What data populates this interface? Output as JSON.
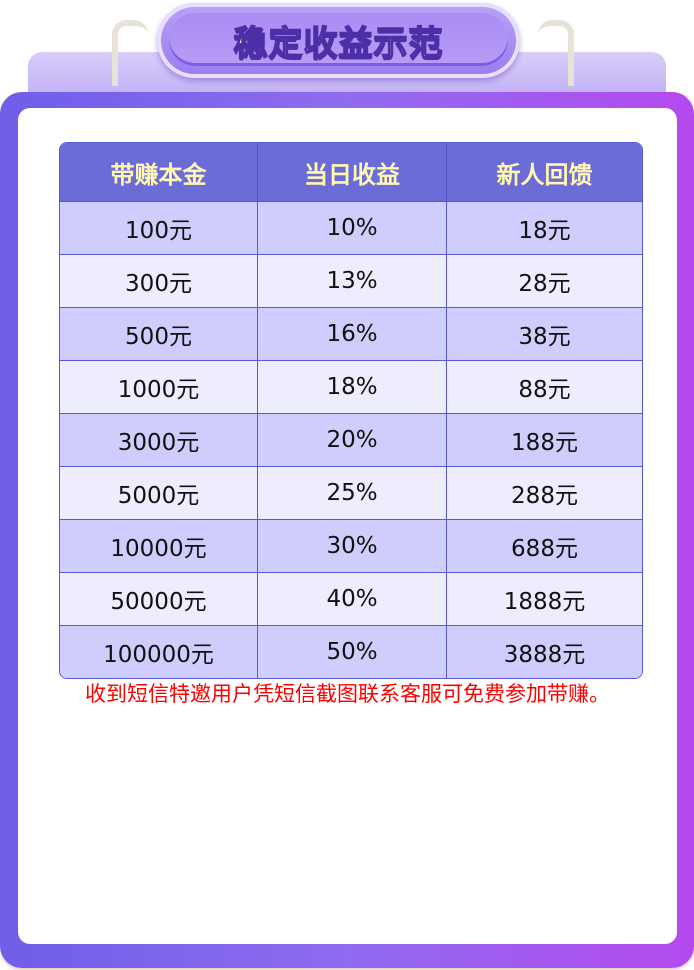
{
  "title": "稳定收益示范",
  "colors": {
    "header_bg": "#6c6cd8",
    "header_text": "#fff8b0",
    "row_odd": "#cfcdfb",
    "row_even": "#ededfd",
    "notice": "#ff0000"
  },
  "table": {
    "headers": [
      "带赚本金",
      "当日收益",
      "新人回馈"
    ],
    "rows": [
      [
        "100元",
        "10%",
        "18元"
      ],
      [
        "300元",
        "13%",
        "28元"
      ],
      [
        "500元",
        "16%",
        "38元"
      ],
      [
        "1000元",
        "18%",
        "88元"
      ],
      [
        "3000元",
        "20%",
        "188元"
      ],
      [
        "5000元",
        "25%",
        "288元"
      ],
      [
        "10000元",
        "30%",
        "688元"
      ],
      [
        "50000元",
        "40%",
        "1888元"
      ],
      [
        "100000元",
        "50%",
        "3888元"
      ]
    ]
  },
  "notice": "收到短信特邀用户凭短信截图联系客服可免费参加带赚。"
}
